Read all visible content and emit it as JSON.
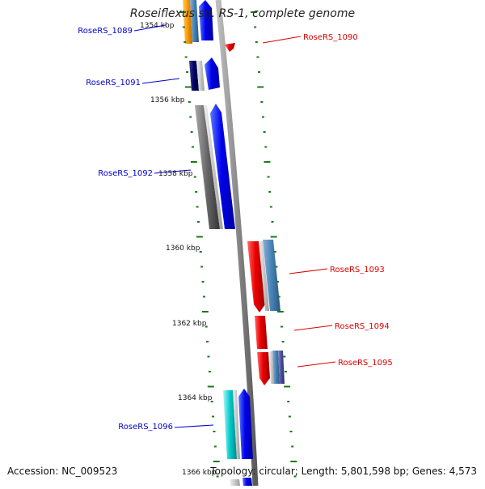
{
  "title": "Roseiflexus sp. RS-1, complete genome",
  "accession": "Accession: NC_009523",
  "topology": "Topology: circular; Length: 5,801,598 bp; Genes: 4,573",
  "colors": {
    "backbone": "#888888",
    "ticks": "#1a7a1a",
    "forward_label": "#0000cc",
    "reverse_label": "#dd0000"
  },
  "ticks": [
    {
      "label": "1354 kbp"
    },
    {
      "label": "1356 kbp"
    },
    {
      "label": "1358 kbp"
    },
    {
      "label": "1360 kbp"
    },
    {
      "label": "1362 kbp"
    },
    {
      "label": "1364 kbp"
    },
    {
      "label": "1366 kbp"
    }
  ],
  "genes": [
    {
      "label": "RoseRS_1089",
      "strand": "forward"
    },
    {
      "label": "RoseRS_1090",
      "strand": "reverse"
    },
    {
      "label": "RoseRS_1091",
      "strand": "forward"
    },
    {
      "label": "RoseRS_1092",
      "strand": "forward"
    },
    {
      "label": "RoseRS_1093",
      "strand": "reverse"
    },
    {
      "label": "RoseRS_1094",
      "strand": "reverse"
    },
    {
      "label": "RoseRS_1095",
      "strand": "reverse"
    },
    {
      "label": "RoseRS_1096",
      "strand": "forward"
    }
  ]
}
